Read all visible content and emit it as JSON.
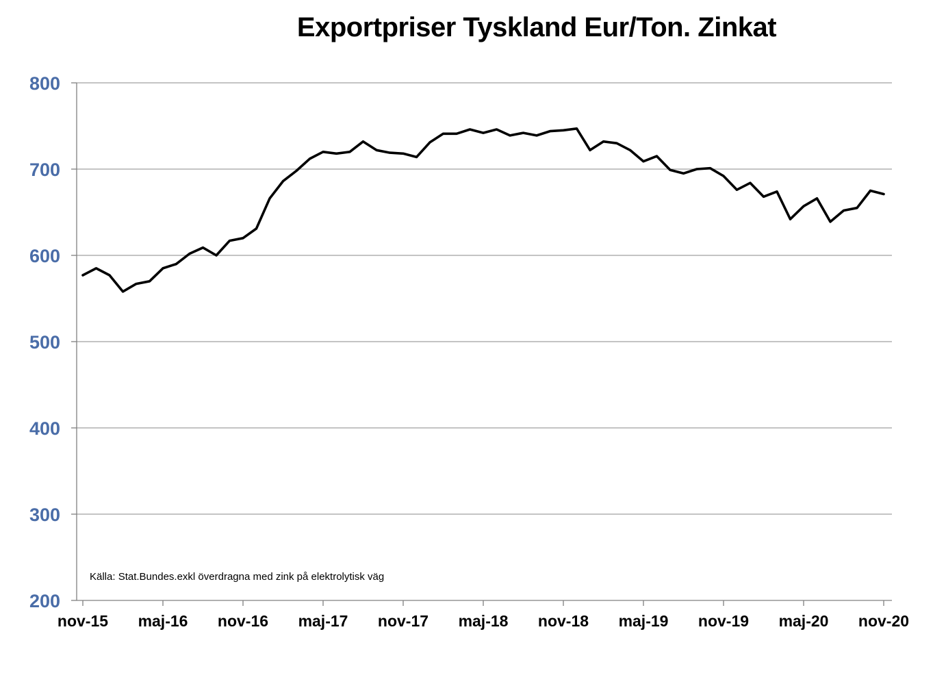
{
  "chart_data": {
    "type": "line",
    "title": "Exportpriser Tyskland Eur/Ton. Zinkat",
    "xlabel": "",
    "ylabel": "",
    "ylim": [
      200,
      800
    ],
    "yticks": [
      200,
      300,
      400,
      500,
      600,
      700,
      800
    ],
    "xtick_labels": [
      "nov-15",
      "maj-16",
      "nov-16",
      "maj-17",
      "nov-17",
      "maj-18",
      "nov-18",
      "maj-19",
      "nov-19",
      "maj-20",
      "nov-20"
    ],
    "grid": true,
    "legend": "none",
    "annotation": "Källa:  Stat.Bundes.exkl överdragna med zink på elektrolytisk väg",
    "colors": {
      "line": "#000000",
      "ytick_text": "#4a6da8",
      "grid": "#a0a0a0",
      "axis": "#808080"
    },
    "x": [
      "nov-15",
      "dec-15",
      "jan-16",
      "feb-16",
      "mar-16",
      "apr-16",
      "maj-16",
      "jun-16",
      "jul-16",
      "aug-16",
      "sep-16",
      "okt-16",
      "nov-16",
      "dec-16",
      "jan-17",
      "feb-17",
      "mar-17",
      "apr-17",
      "maj-17",
      "jun-17",
      "jul-17",
      "aug-17",
      "sep-17",
      "okt-17",
      "nov-17",
      "dec-17",
      "jan-18",
      "feb-18",
      "mar-18",
      "apr-18",
      "maj-18",
      "jun-18",
      "jul-18",
      "aug-18",
      "sep-18",
      "okt-18",
      "nov-18",
      "dec-18",
      "jan-19",
      "feb-19",
      "mar-19",
      "apr-19",
      "maj-19",
      "jun-19",
      "jul-19",
      "aug-19",
      "sep-19",
      "okt-19",
      "nov-19",
      "dec-19",
      "jan-20",
      "feb-20",
      "mar-20",
      "apr-20",
      "maj-20",
      "jun-20",
      "jul-20",
      "aug-20",
      "sep-20",
      "okt-20",
      "nov-20"
    ],
    "series": [
      {
        "values": [
          577,
          585,
          577,
          558,
          567,
          570,
          585,
          590,
          602,
          609,
          600,
          617,
          620,
          631,
          666,
          686,
          698,
          712,
          720,
          718,
          720,
          732,
          722,
          719,
          718,
          714,
          731,
          741,
          741,
          746,
          742,
          746,
          739,
          742,
          739,
          744,
          745,
          747,
          722,
          732,
          730,
          722,
          709,
          715,
          699,
          695,
          700,
          701,
          692,
          676,
          684,
          668,
          674,
          642,
          657,
          666,
          639,
          652,
          655,
          675,
          671
        ]
      }
    ]
  }
}
